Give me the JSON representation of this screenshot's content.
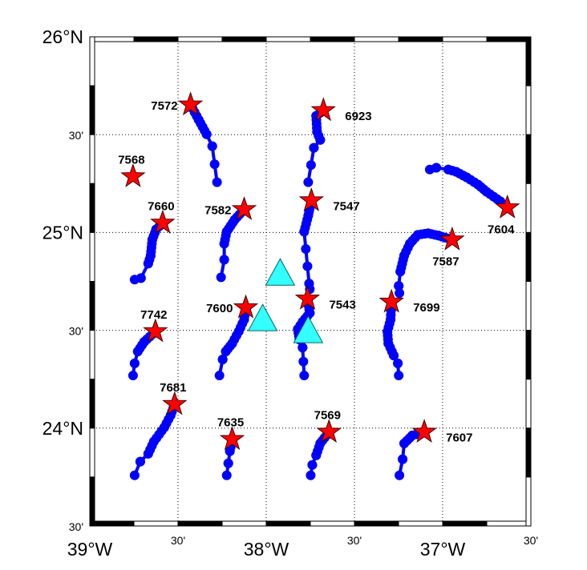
{
  "map": {
    "projection_extent": {
      "lon": [
        -39.0,
        -36.5
      ],
      "lat": [
        23.5,
        26.0
      ]
    },
    "grid": "dotted",
    "grid_interval_minutes": 30,
    "frame": "alternating black/white",
    "colors": {
      "track": "#0000ff",
      "deploy_star": "#ff0000",
      "triangle": "#33ffff",
      "grid": "#000000"
    },
    "lat_labels": [
      {
        "lat": 26.0,
        "text": "26°N",
        "size": "big"
      },
      {
        "lat": 25.5,
        "text": "30'",
        "size": "small"
      },
      {
        "lat": 25.0,
        "text": "25°N",
        "size": "big"
      },
      {
        "lat": 24.5,
        "text": "30'",
        "size": "small"
      },
      {
        "lat": 24.0,
        "text": "24°N",
        "size": "big"
      },
      {
        "lat": 23.5,
        "text": "30'",
        "size": "small"
      }
    ],
    "lon_labels": [
      {
        "lon": -39.0,
        "text": "39°W",
        "size": "big"
      },
      {
        "lon": -38.5,
        "text": "30'",
        "size": "small"
      },
      {
        "lon": -38.0,
        "text": "38°W",
        "size": "big"
      },
      {
        "lon": -37.5,
        "text": "30'",
        "size": "small"
      },
      {
        "lon": -37.0,
        "text": "37°W",
        "size": "big"
      },
      {
        "lon": -36.5,
        "text": "30'",
        "size": "small"
      }
    ],
    "floats": [
      {
        "id": "7572",
        "label_position": "left",
        "track": [
          [
            -38.429,
            25.653
          ],
          [
            -38.383,
            25.576
          ],
          [
            -38.338,
            25.502
          ],
          [
            -38.306,
            25.441
          ],
          [
            -38.279,
            25.257
          ]
        ]
      },
      {
        "id": "7568",
        "label_position": "above",
        "track": [
          [
            -38.755,
            25.286
          ]
        ]
      },
      {
        "id": "6923",
        "label_position": "right",
        "track": [
          [
            -37.676,
            25.624
          ],
          [
            -37.717,
            25.596
          ],
          [
            -37.712,
            25.514
          ],
          [
            -37.694,
            25.473
          ],
          [
            -37.73,
            25.433
          ],
          [
            -37.762,
            25.257
          ]
        ]
      },
      {
        "id": "7547",
        "label_position": "right",
        "track": [
          [
            -37.744,
            25.163
          ],
          [
            -37.762,
            25.086
          ],
          [
            -37.785,
            25.004
          ],
          [
            -37.757,
            24.739
          ],
          [
            -37.753,
            24.71
          ]
        ]
      },
      {
        "id": "7604",
        "label_position": "below",
        "track": [
          [
            -36.633,
            25.127
          ],
          [
            -36.673,
            25.159
          ],
          [
            -36.751,
            25.208
          ],
          [
            -36.8,
            25.245
          ],
          [
            -36.864,
            25.282
          ],
          [
            -36.923,
            25.31
          ],
          [
            -36.968,
            25.322
          ],
          [
            -37.036,
            25.331
          ],
          [
            -37.073,
            25.322
          ]
        ]
      },
      {
        "id": "7587",
        "label_position": "below",
        "track": [
          [
            -36.946,
            24.963
          ],
          [
            -37.023,
            24.984
          ],
          [
            -37.082,
            24.996
          ],
          [
            -37.141,
            24.988
          ],
          [
            -37.186,
            24.943
          ],
          [
            -37.218,
            24.882
          ],
          [
            -37.24,
            24.8
          ],
          [
            -37.249,
            24.727
          ],
          [
            -37.245,
            24.69
          ]
        ]
      },
      {
        "id": "7660",
        "label_position": "above",
        "track": [
          [
            -38.587,
            25.049
          ],
          [
            -38.624,
            25.016
          ],
          [
            -38.646,
            24.963
          ],
          [
            -38.655,
            24.882
          ],
          [
            -38.669,
            24.841
          ],
          [
            -38.71,
            24.767
          ],
          [
            -38.746,
            24.759
          ]
        ]
      },
      {
        "id": "7582",
        "label_position": "left",
        "track": [
          [
            -38.125,
            25.118
          ],
          [
            -38.179,
            25.065
          ],
          [
            -38.224,
            25.004
          ],
          [
            -38.238,
            24.943
          ],
          [
            -38.238,
            24.861
          ],
          [
            -38.256,
            24.771
          ]
        ]
      },
      {
        "id": "7543",
        "label_position": "right",
        "track": [
          [
            -37.766,
            24.661
          ],
          [
            -37.753,
            24.588
          ],
          [
            -37.794,
            24.543
          ],
          [
            -37.821,
            24.506
          ],
          [
            -37.812,
            24.453
          ],
          [
            -37.794,
            24.412
          ],
          [
            -37.785,
            24.269
          ]
        ]
      },
      {
        "id": "7699",
        "label_position": "right",
        "track": [
          [
            -37.29,
            24.645
          ],
          [
            -37.295,
            24.555
          ],
          [
            -37.313,
            24.494
          ],
          [
            -37.308,
            24.433
          ],
          [
            -37.277,
            24.371
          ],
          [
            -37.254,
            24.331
          ],
          [
            -37.249,
            24.269
          ]
        ]
      },
      {
        "id": "7600",
        "label_position": "left",
        "track": [
          [
            -38.116,
            24.616
          ],
          [
            -38.125,
            24.555
          ],
          [
            -38.156,
            24.494
          ],
          [
            -38.193,
            24.433
          ],
          [
            -38.229,
            24.392
          ],
          [
            -38.247,
            24.351
          ],
          [
            -38.265,
            24.269
          ]
        ]
      },
      {
        "id": "7742",
        "label_position": "above",
        "track": [
          [
            -38.628,
            24.494
          ],
          [
            -38.692,
            24.441
          ],
          [
            -38.728,
            24.392
          ],
          [
            -38.746,
            24.331
          ],
          [
            -38.755,
            24.269
          ]
        ]
      },
      {
        "id": "7681",
        "label_position": "above",
        "track": [
          [
            -38.519,
            24.122
          ],
          [
            -38.542,
            24.065
          ],
          [
            -38.578,
            24.004
          ],
          [
            -38.637,
            23.931
          ],
          [
            -38.669,
            23.869
          ],
          [
            -38.714,
            23.829
          ],
          [
            -38.746,
            23.759
          ]
        ]
      },
      {
        "id": "7635",
        "label_position": "above",
        "track": [
          [
            -38.193,
            23.943
          ],
          [
            -38.206,
            23.882
          ],
          [
            -38.215,
            23.82
          ],
          [
            -38.224,
            23.759
          ]
        ]
      },
      {
        "id": "7569",
        "label_position": "above",
        "track": [
          [
            -37.644,
            23.98
          ],
          [
            -37.694,
            23.922
          ],
          [
            -37.717,
            23.861
          ],
          [
            -37.739,
            23.812
          ],
          [
            -37.748,
            23.759
          ]
        ]
      },
      {
        "id": "7607",
        "label_position": "right",
        "track": [
          [
            -37.104,
            23.98
          ],
          [
            -37.172,
            23.963
          ],
          [
            -37.218,
            23.922
          ],
          [
            -37.227,
            23.841
          ],
          [
            -37.245,
            23.759
          ]
        ]
      }
    ],
    "triangles": [
      {
        "lon": -37.921,
        "lat": 24.788
      },
      {
        "lon": -38.02,
        "lat": 24.555
      },
      {
        "lon": -37.762,
        "lat": 24.494
      }
    ]
  }
}
